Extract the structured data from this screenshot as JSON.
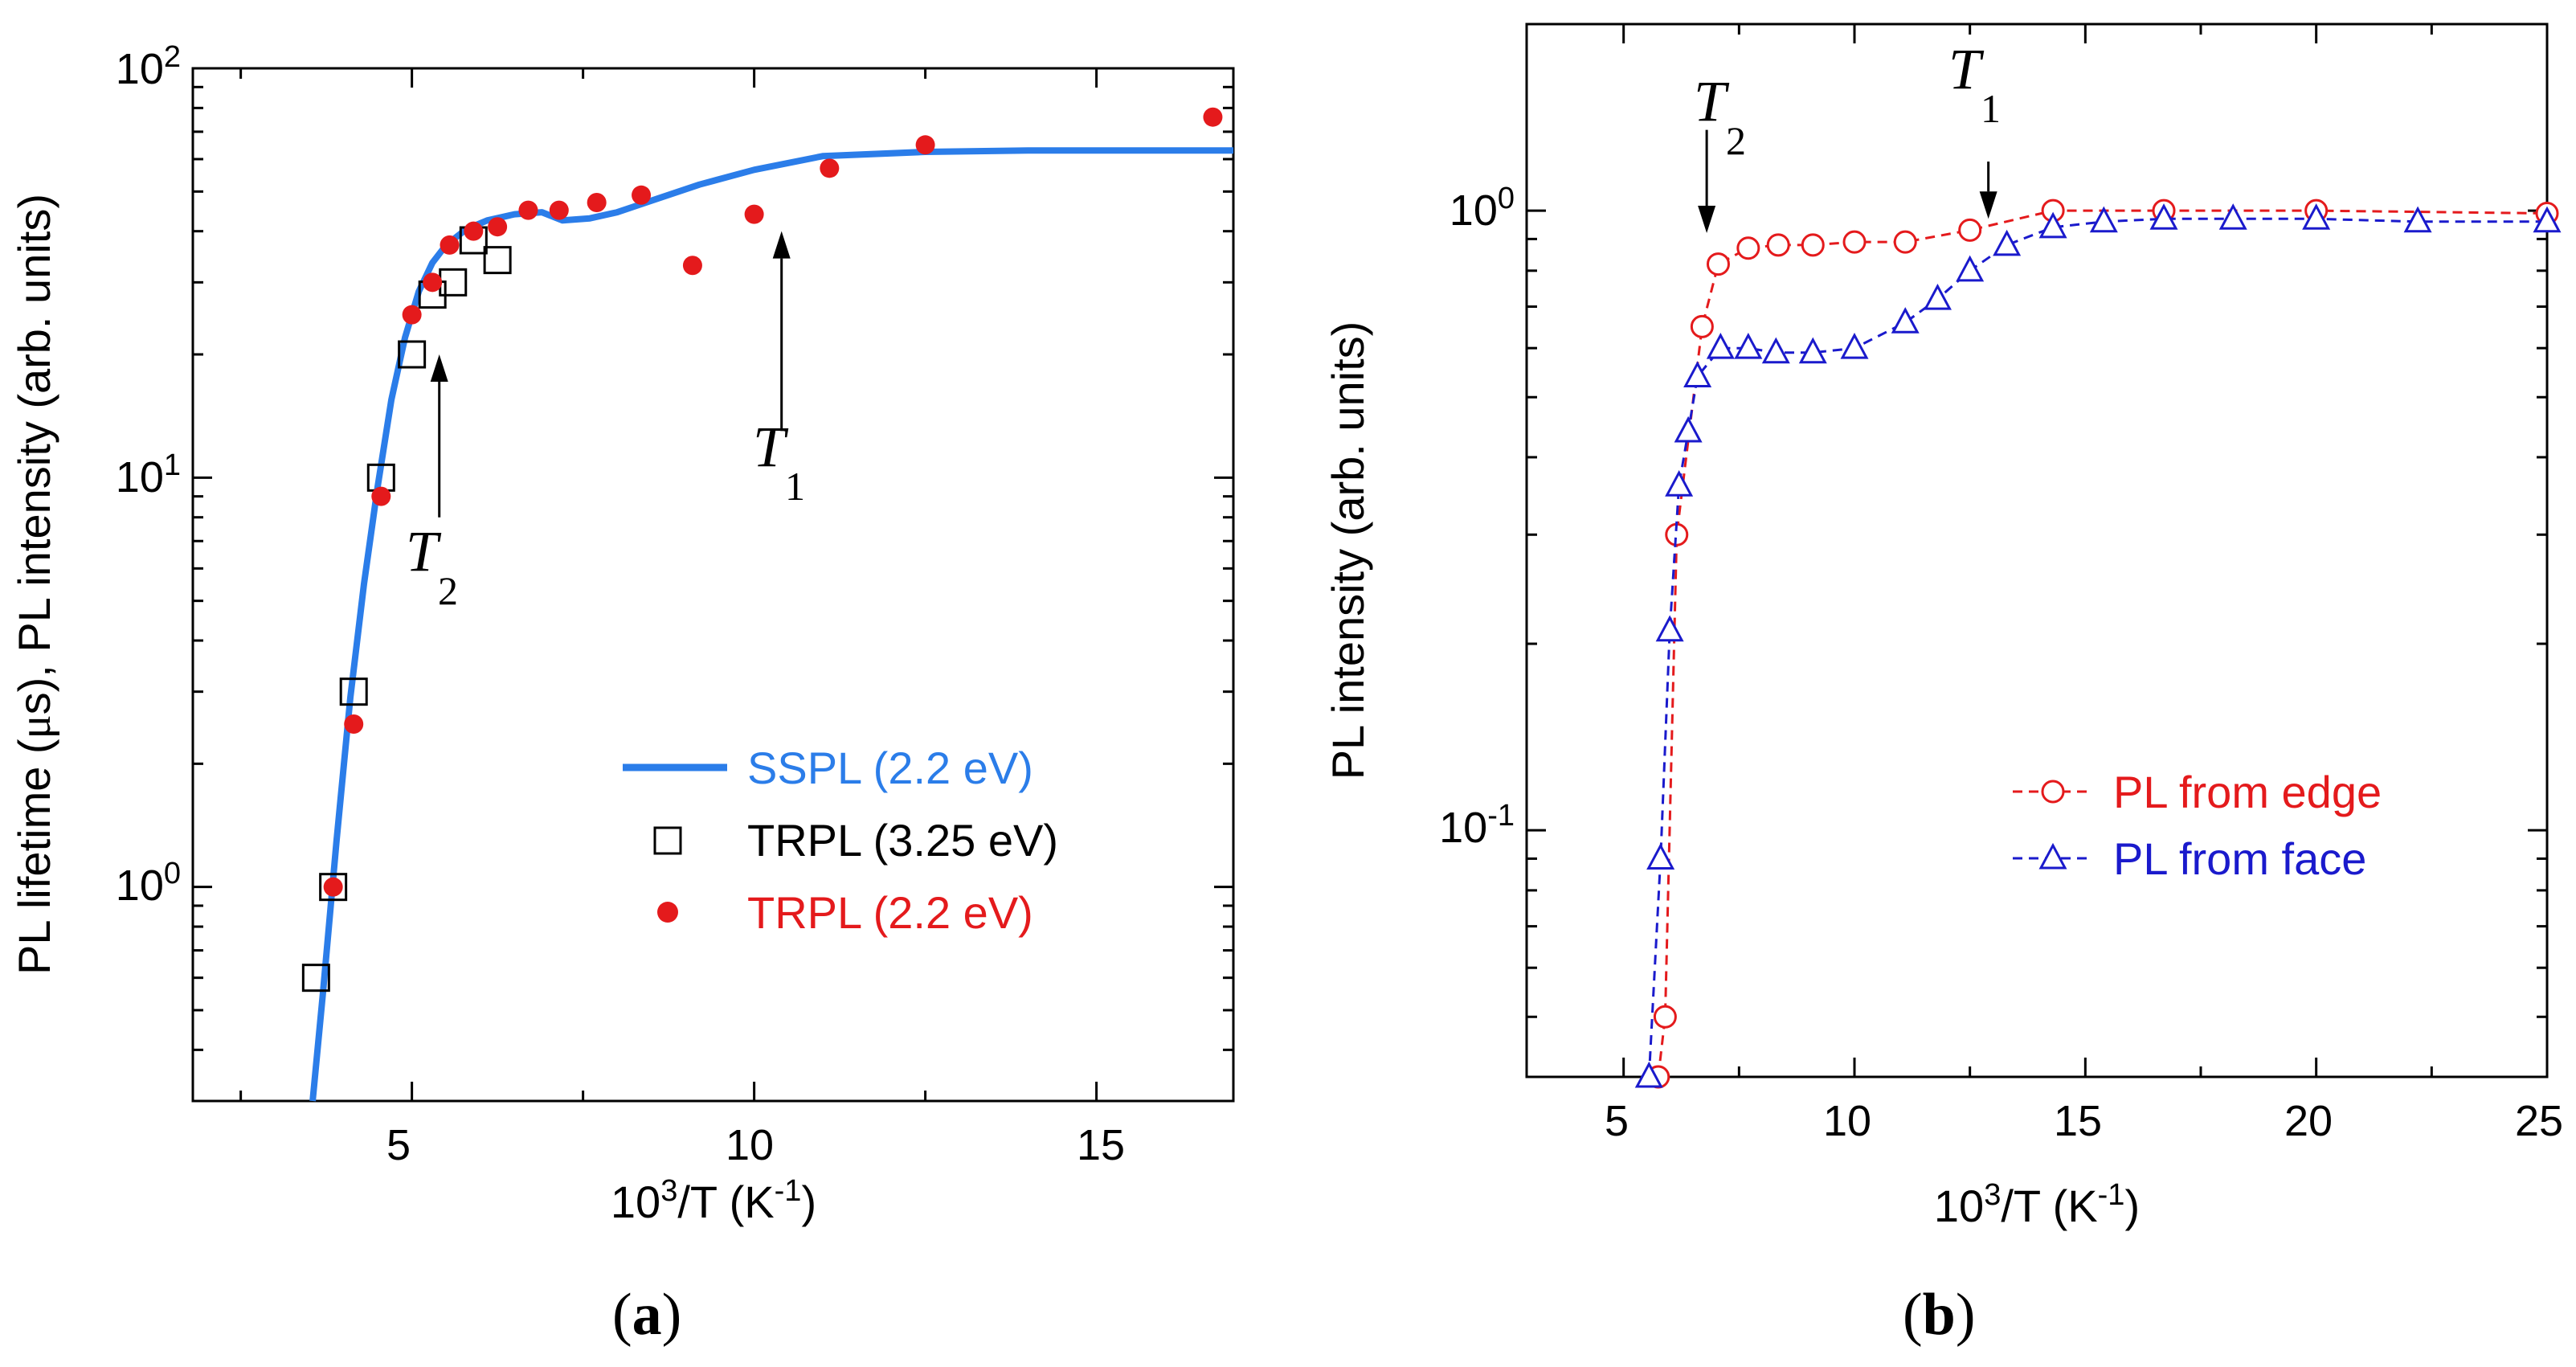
{
  "chart_data": [
    {
      "panel": "a",
      "type": "scatter",
      "caption": "(a)",
      "ylabel_parts": [
        "PL lifetime (",
        "μ",
        "s), PL intensity (arb. units)"
      ],
      "xlabel": {
        "base": "10",
        "sup": "3",
        "mid": "/T (K",
        "sup2": "-1",
        "end": ")"
      },
      "xscale": "linear",
      "yscale": "log",
      "xlim": [
        1.8,
        17
      ],
      "ylim": [
        0.3,
        100
      ],
      "xticks_major": [
        5,
        10,
        15
      ],
      "xticks_minor": [
        2.5,
        7.5,
        12.5
      ],
      "yticks_major": [
        {
          "value": 1,
          "base": "10",
          "exp": "0"
        },
        {
          "value": 10,
          "base": "10",
          "exp": "1"
        },
        {
          "value": 100,
          "base": "10",
          "exp": "2"
        }
      ],
      "series": [
        {
          "name": "SSPL (2.2 eV)",
          "kind": "line",
          "color": "#2b7de9",
          "x": [
            3.55,
            3.7,
            3.9,
            4.1,
            4.3,
            4.5,
            4.7,
            4.9,
            5.1,
            5.3,
            5.5,
            5.8,
            6.1,
            6.5,
            6.9,
            7.2,
            7.6,
            8.0,
            8.5,
            9.2,
            10.0,
            11.0,
            12.5,
            14.0,
            17.0
          ],
          "y": [
            0.28,
            0.55,
            1.3,
            2.9,
            5.5,
            9.5,
            15.5,
            22.0,
            28.5,
            33.5,
            37.0,
            40.5,
            42.5,
            44.0,
            44.5,
            42.5,
            43.0,
            44.5,
            47.5,
            52.0,
            56.5,
            61.0,
            62.5,
            63.0,
            63.0
          ]
        },
        {
          "name": "TRPL (3.25 eV)",
          "kind": "open-square",
          "color": "#000000",
          "x": [
            3.6,
            3.85,
            4.15,
            4.55,
            5.0,
            5.3,
            5.6,
            5.9,
            6.25
          ],
          "y": [
            0.6,
            1.0,
            3.0,
            10.0,
            20.0,
            28.0,
            30.0,
            38.0,
            34.0
          ]
        },
        {
          "name": "TRPL (2.2 eV)",
          "kind": "filled-circle",
          "color": "#e41a1c",
          "x": [
            3.85,
            4.15,
            4.55,
            5.0,
            5.3,
            5.55,
            5.9,
            6.25,
            6.7,
            7.15,
            7.7,
            8.35,
            9.1,
            10.0,
            11.1,
            12.5,
            16.7
          ],
          "y": [
            1.0,
            2.5,
            9.0,
            25.0,
            30.0,
            37.0,
            40.0,
            41.0,
            45.0,
            45.0,
            47.0,
            49.0,
            33.0,
            44.0,
            57.0,
            65.0,
            76.0
          ]
        }
      ],
      "legend": {
        "position": "bottom-right"
      },
      "annotations": [
        {
          "label": "T",
          "sub": "2",
          "arrow_x": 5.4,
          "arrow_from_y": 8.0,
          "arrow_to_y": 20.0
        },
        {
          "label": "T",
          "sub": "1",
          "arrow_x": 10.4,
          "arrow_from_y": 13.0,
          "arrow_to_y": 40.0
        }
      ]
    },
    {
      "panel": "b",
      "type": "line",
      "caption": "(b)",
      "ylabel": "PL intensity (arb. units)",
      "xlabel": {
        "base": "10",
        "sup": "3",
        "mid": "/T (K",
        "sup2": "-1",
        "end": ")"
      },
      "xscale": "linear",
      "yscale": "log",
      "xlim": [
        2.9,
        25
      ],
      "ylim": [
        0.04,
        2.0
      ],
      "xticks_major": [
        5,
        10,
        15,
        20,
        25
      ],
      "xticks_minor": [
        7.5,
        12.5,
        17.5,
        22.5
      ],
      "yticks_major": [
        {
          "value": 0.1,
          "base": "10",
          "exp": "-1"
        },
        {
          "value": 1,
          "base": "10",
          "exp": "0"
        }
      ],
      "series": [
        {
          "name": "PL from edge",
          "kind": "dashed-open-circle",
          "color": "#e41a1c",
          "x": [
            5.75,
            5.9,
            6.15,
            6.7,
            7.05,
            7.7,
            8.35,
            9.1,
            10.0,
            11.1,
            12.5,
            14.3,
            16.7,
            20.0,
            25.0
          ],
          "y": [
            0.04,
            0.05,
            0.3,
            0.65,
            0.82,
            0.87,
            0.88,
            0.88,
            0.89,
            0.89,
            0.93,
            1.0,
            1.0,
            1.0,
            0.99
          ]
        },
        {
          "name": "PL from face",
          "kind": "dashed-open-triangle",
          "color": "#1a1acc",
          "x": [
            5.55,
            5.8,
            6.0,
            6.2,
            6.4,
            6.6,
            7.1,
            7.7,
            8.3,
            9.1,
            10.0,
            11.1,
            11.8,
            12.5,
            13.3,
            14.3,
            15.4,
            16.7,
            18.2,
            20.0,
            22.2,
            25.0
          ],
          "y": [
            0.04,
            0.09,
            0.21,
            0.36,
            0.44,
            0.54,
            0.6,
            0.6,
            0.59,
            0.59,
            0.6,
            0.66,
            0.72,
            0.8,
            0.88,
            0.94,
            0.96,
            0.97,
            0.97,
            0.97,
            0.96,
            0.96
          ]
        }
      ],
      "legend": {
        "position": "lower-right"
      },
      "annotations": [
        {
          "label": "T",
          "sub": "2",
          "arrow_x": 6.8,
          "arrow_from_y": 1.35,
          "arrow_to_y": 0.92
        },
        {
          "label": "T",
          "sub": "1",
          "arrow_x": 12.9,
          "arrow_from_y": 1.2,
          "arrow_to_y": 0.97
        }
      ]
    }
  ]
}
